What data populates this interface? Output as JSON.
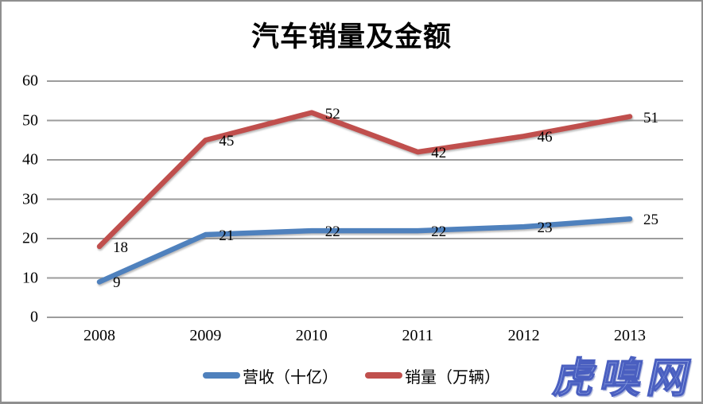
{
  "title": "汽车销量及金额",
  "chart_data": {
    "type": "line",
    "title": "汽车销量及金额",
    "categories": [
      "2008",
      "2009",
      "2010",
      "2011",
      "2012",
      "2013"
    ],
    "series": [
      {
        "name": "营收（十亿）",
        "color": "#4F81BD",
        "values": [
          9,
          21,
          22,
          22,
          23,
          25
        ]
      },
      {
        "name": "销量（万辆）",
        "color": "#C0504D",
        "values": [
          18,
          45,
          52,
          42,
          46,
          51
        ]
      }
    ],
    "ylim": [
      0,
      60
    ],
    "ytick_interval": 10,
    "yticks": [
      "0",
      "10",
      "20",
      "30",
      "40",
      "50",
      "60"
    ],
    "xlabel": "",
    "ylabel": "",
    "grid": true,
    "gridline_color": "#9c9c9c",
    "legend_position": "bottom",
    "data_labels": "right"
  },
  "watermark": {
    "text": "虎嗅网",
    "fill": "#9aaee6",
    "outline": "#4a5fc0"
  }
}
